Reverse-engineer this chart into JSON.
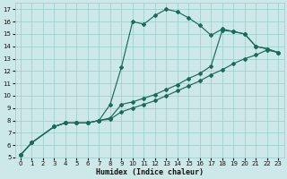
{
  "xlabel": "Humidex (Indice chaleur)",
  "bg_color": "#cce8e8",
  "line_color": "#1a6b5a",
  "grid_color": "#99cccc",
  "xlim": [
    -0.5,
    23.5
  ],
  "ylim": [
    5,
    17.5
  ],
  "xticks": [
    0,
    1,
    2,
    3,
    4,
    5,
    6,
    7,
    8,
    9,
    10,
    11,
    12,
    13,
    14,
    15,
    16,
    17,
    18,
    19,
    20,
    21,
    22,
    23
  ],
  "yticks": [
    5,
    6,
    7,
    8,
    9,
    10,
    11,
    12,
    13,
    14,
    15,
    16,
    17
  ],
  "series": [
    {
      "x": [
        0,
        1,
        3,
        4,
        5,
        6,
        7,
        8,
        9,
        10,
        11,
        12,
        13,
        14,
        15,
        16,
        17,
        18,
        19,
        20,
        21,
        22,
        23
      ],
      "y": [
        5.2,
        6.2,
        7.5,
        7.8,
        7.8,
        7.8,
        8.0,
        9.3,
        12.3,
        16.0,
        15.8,
        16.5,
        17.0,
        16.8,
        16.3,
        15.7,
        14.9,
        15.4,
        15.2,
        15.0,
        14.0,
        13.8,
        13.5
      ]
    },
    {
      "x": [
        0,
        1,
        3,
        4,
        5,
        6,
        7,
        8,
        9,
        10,
        11,
        12,
        13,
        14,
        15,
        16,
        17,
        18,
        19,
        20,
        21,
        22,
        23
      ],
      "y": [
        5.2,
        6.2,
        7.5,
        7.8,
        7.8,
        7.8,
        8.0,
        8.2,
        9.3,
        9.5,
        9.8,
        10.1,
        10.5,
        10.9,
        11.4,
        11.8,
        12.4,
        15.3,
        15.2,
        15.0,
        14.0,
        13.8,
        13.5
      ]
    },
    {
      "x": [
        0,
        1,
        3,
        4,
        5,
        6,
        7,
        8,
        9,
        10,
        11,
        12,
        13,
        14,
        15,
        16,
        17,
        18,
        19,
        20,
        21,
        22,
        23
      ],
      "y": [
        5.2,
        6.2,
        7.5,
        7.8,
        7.8,
        7.8,
        8.0,
        8.1,
        8.7,
        9.0,
        9.3,
        9.6,
        10.0,
        10.4,
        10.8,
        11.2,
        11.7,
        12.1,
        12.6,
        13.0,
        13.3,
        13.7,
        13.5
      ]
    }
  ]
}
